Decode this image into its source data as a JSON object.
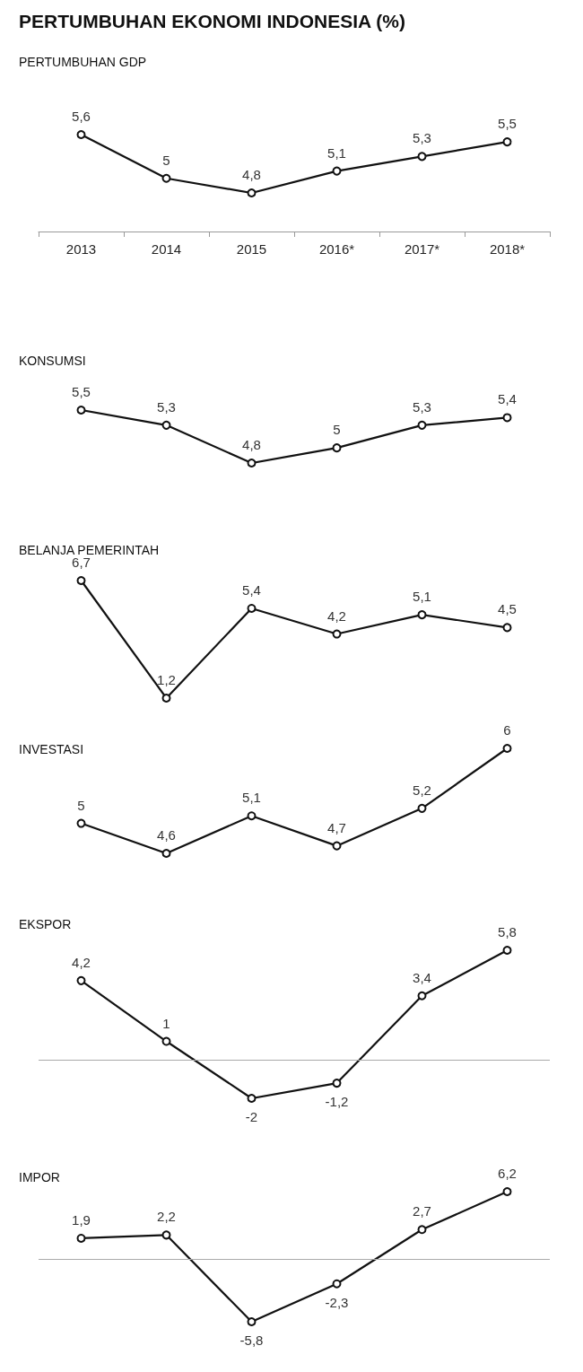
{
  "chart_data": [
    {
      "type": "line",
      "title": "PERTUMBUHAN EKONOMI INDONESIA (%)",
      "subtitle": "PERTUMBUHAN GDP",
      "categories": [
        "2013",
        "2014",
        "2015",
        "2016*",
        "2017*",
        "2018*"
      ],
      "series": [
        {
          "color": "#111111",
          "values": [
            5.6,
            5,
            4.8,
            5.1,
            5.3,
            5.5
          ],
          "value_labels": [
            "5,6",
            "5",
            "4,8",
            "5,1",
            "5,3",
            "5,5"
          ]
        }
      ],
      "marker": "circle",
      "tick_labels": "x"
    },
    {
      "type": "line",
      "title": "KONSUMSI",
      "categories": [
        null,
        null,
        null,
        null,
        null,
        null
      ],
      "series": [
        {
          "color": "#111111",
          "values": [
            5.5,
            5.3,
            4.8,
            5,
            5.3,
            5.4
          ],
          "value_labels": [
            "5,5",
            "5,3",
            "4,8",
            "5",
            "5,3",
            "5,4"
          ]
        }
      ],
      "marker": "circle",
      "tick_labels": false
    },
    {
      "type": "line",
      "title": "BELANJA PEMERINTAH",
      "categories": [
        null,
        null,
        null,
        null,
        null,
        null
      ],
      "series": [
        {
          "color": "#111111",
          "values": [
            6.7,
            1.2,
            5.4,
            4.2,
            5.1,
            4.5
          ],
          "value_labels": [
            "6,7",
            "1,2",
            "5,4",
            "4,2",
            "5,1",
            "4,5"
          ]
        }
      ],
      "marker": "circle",
      "tick_labels": false
    },
    {
      "type": "line",
      "title": "INVESTASI",
      "categories": [
        null,
        null,
        null,
        null,
        null,
        null
      ],
      "series": [
        {
          "color": "#111111",
          "values": [
            5,
            4.6,
            5.1,
            4.7,
            5.2,
            6
          ],
          "value_labels": [
            "5",
            "4,6",
            "5,1",
            "4,7",
            "5,2",
            "6"
          ]
        }
      ],
      "marker": "circle",
      "tick_labels": false
    },
    {
      "type": "line",
      "title": "EKSPOR",
      "categories": [
        null,
        null,
        null,
        null,
        null,
        null
      ],
      "series": [
        {
          "color": "#111111",
          "values": [
            4.2,
            1,
            -2,
            -1.2,
            3.4,
            5.8
          ],
          "value_labels": [
            "4,2",
            "1",
            "-2",
            "-1,2",
            "3,4",
            "5,8"
          ]
        }
      ],
      "marker": "circle",
      "tick_labels": false,
      "ref_lines": [
        {
          "axis": "y",
          "value": 0,
          "color": "#aaaaaa"
        }
      ]
    },
    {
      "type": "line",
      "title": "IMPOR",
      "categories": [
        null,
        null,
        null,
        null,
        null,
        null
      ],
      "series": [
        {
          "color": "#111111",
          "values": [
            1.9,
            2.2,
            -5.8,
            -2.3,
            2.7,
            6.2
          ],
          "value_labels": [
            "1,9",
            "2,2",
            "-5,8",
            "-2,3",
            "2,7",
            "6,2"
          ]
        }
      ],
      "marker": "circle",
      "tick_labels": false,
      "ref_lines": [
        {
          "axis": "y",
          "value": 0,
          "color": "#aaaaaa"
        }
      ]
    }
  ]
}
